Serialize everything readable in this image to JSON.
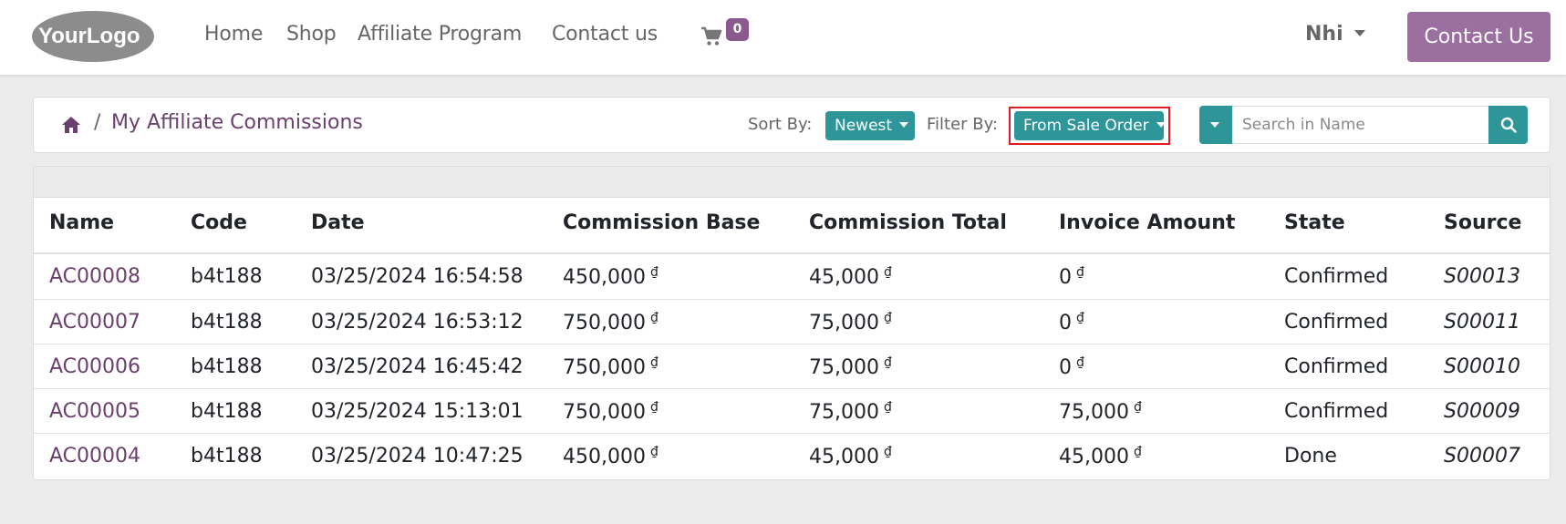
{
  "header": {
    "logo_alt": "YourLogo",
    "nav": [
      {
        "label": "Home"
      },
      {
        "label": "Shop"
      },
      {
        "label": "Affiliate Program"
      },
      {
        "label": "Contact us"
      }
    ],
    "cart_count": "0",
    "user_name": "Nhi",
    "contact_button": "Contact Us"
  },
  "breadcrumb": {
    "separator": "/",
    "current": "My Affiliate Commissions"
  },
  "toolbar": {
    "sort_label": "Sort By:",
    "sort_value": "Newest",
    "filter_label": "Filter By:",
    "filter_value": "From Sale Order",
    "search_placeholder": "Search in Name"
  },
  "table": {
    "currency_symbol": "₫",
    "columns": [
      "Name",
      "Code",
      "Date",
      "Commission Base",
      "Commission Total",
      "Invoice Amount",
      "State",
      "Source"
    ],
    "rows": [
      {
        "name": "AC00008",
        "code": "b4t188",
        "date": "03/25/2024 16:54:58",
        "base": "450,000",
        "total": "45,000",
        "invoice": "0",
        "state": "Confirmed",
        "source": "S00013"
      },
      {
        "name": "AC00007",
        "code": "b4t188",
        "date": "03/25/2024 16:53:12",
        "base": "750,000",
        "total": "75,000",
        "invoice": "0",
        "state": "Confirmed",
        "source": "S00011"
      },
      {
        "name": "AC00006",
        "code": "b4t188",
        "date": "03/25/2024 16:45:42",
        "base": "750,000",
        "total": "75,000",
        "invoice": "0",
        "state": "Confirmed",
        "source": "S00010"
      },
      {
        "name": "AC00005",
        "code": "b4t188",
        "date": "03/25/2024 15:13:01",
        "base": "750,000",
        "total": "75,000",
        "invoice": "75,000",
        "state": "Confirmed",
        "source": "S00009"
      },
      {
        "name": "AC00004",
        "code": "b4t188",
        "date": "03/25/2024 10:47:25",
        "base": "450,000",
        "total": "45,000",
        "invoice": "45,000",
        "state": "Done",
        "source": "S00007"
      }
    ]
  },
  "icons": {
    "cart": "shopping-cart-icon",
    "home": "home-icon",
    "search": "search-icon",
    "caret": "caret-down-icon"
  },
  "colors": {
    "brand": "#9b6fa0",
    "teal": "#2e9599",
    "link": "#6b3f6e",
    "highlight": "#e01b24"
  }
}
